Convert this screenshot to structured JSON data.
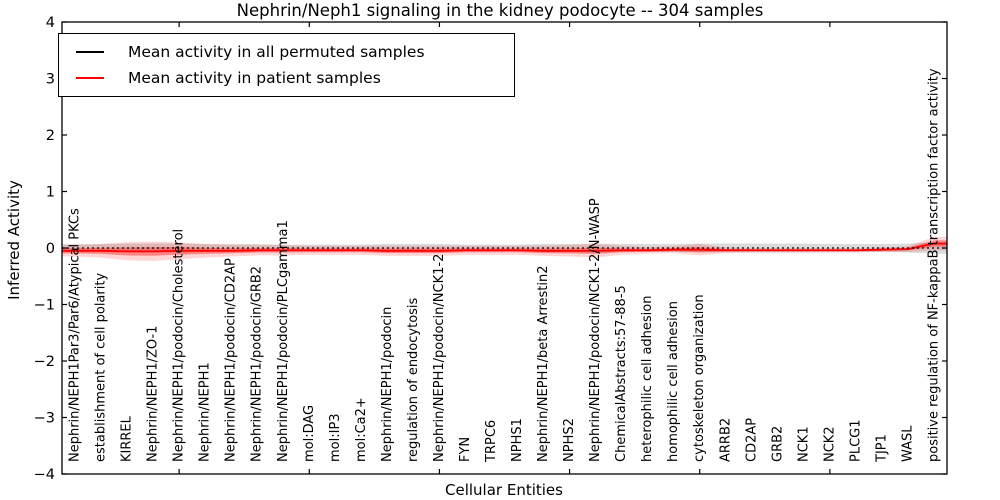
{
  "chart_data": {
    "type": "line",
    "title": "Nephrin/Neph1 signaling in the kidney podocyte -- 304 samples",
    "xlabel": "Cellular Entities",
    "ylabel": "Inferred Activity",
    "ylim": [
      -4,
      4
    ],
    "yticks": [
      -4,
      -3,
      -2,
      -1,
      0,
      1,
      2,
      3,
      4
    ],
    "xticks": [
      5,
      10,
      15,
      20,
      25,
      30
    ],
    "grid": false,
    "legend_position": "upper left",
    "n_samples": 304,
    "categories": [
      "Nephrin/NEPH1Par3/Par6/Atypical PKCs",
      "establishment of cell polarity",
      "KIRREL",
      "Nephrin/NEPH1/ZO-1",
      "Nephrin/NEPH1/podocin/Cholesterol",
      "Nephrin/NEPH1",
      "Nephrin/NEPH1/podocin/CD2AP",
      "Nephrin/NEPH1/podocin/GRB2",
      "Nephrin/NEPH1/podocin/PLCgamma1",
      "mol:DAG",
      "mol:IP3",
      "mol:Ca2+",
      "Nephrin/NEPH1/podocin",
      "regulation of endocytosis",
      "Nephrin/NEPH1/podocin/NCK1-2",
      "FYN",
      "TRPC6",
      "NPHS1",
      "Nephrin/NEPH1/beta Arrestin2",
      "NPHS2",
      "Nephrin/NEPH1/podocin/NCK1-2/N-WASP",
      "ChemicalAbstracts:57-88-5",
      "heterophilic cell adhesion",
      "homophilic cell adhesion",
      "cytoskeleton organization",
      "ARRB2",
      "CD2AP",
      "GRB2",
      "NCK1",
      "NCK2",
      "PLCG1",
      "TJP1",
      "WASL",
      "positive regulation of NF-kappaB transcription factor activity"
    ],
    "series": [
      {
        "name": "Mean activity in all permuted samples",
        "color": "#000000",
        "linestyle": "dashed",
        "values": [
          0,
          0,
          0,
          0,
          0,
          0,
          0,
          0,
          0,
          0,
          0,
          0,
          0,
          0,
          0,
          0,
          0,
          0,
          0,
          0,
          0,
          0,
          0,
          0,
          0,
          0,
          0,
          0,
          0,
          0,
          0,
          0,
          0,
          0
        ],
        "band_halfwidth": [
          0.07,
          0.07,
          0.08,
          0.08,
          0.08,
          0.07,
          0.07,
          0.07,
          0.06,
          0.06,
          0.06,
          0.06,
          0.07,
          0.07,
          0.07,
          0.06,
          0.06,
          0.06,
          0.07,
          0.07,
          0.08,
          0.07,
          0.07,
          0.07,
          0.08,
          0.08,
          0.08,
          0.08,
          0.08,
          0.07,
          0.07,
          0.07,
          0.08,
          0.1
        ],
        "band_color": "rgba(110,110,110,0.25)"
      },
      {
        "name": "Mean activity in patient samples",
        "color": "#ff0000",
        "linestyle": "solid",
        "values": [
          -0.05,
          -0.05,
          -0.06,
          -0.06,
          -0.05,
          -0.05,
          -0.05,
          -0.04,
          -0.04,
          -0.04,
          -0.04,
          -0.04,
          -0.05,
          -0.05,
          -0.05,
          -0.04,
          -0.04,
          -0.04,
          -0.05,
          -0.05,
          -0.05,
          -0.04,
          -0.04,
          -0.03,
          -0.03,
          -0.04,
          -0.04,
          -0.04,
          -0.04,
          -0.04,
          -0.04,
          -0.03,
          -0.02,
          0.08
        ],
        "band_halfwidth": [
          0.1,
          0.12,
          0.16,
          0.17,
          0.15,
          0.12,
          0.1,
          0.09,
          0.09,
          0.08,
          0.08,
          0.08,
          0.09,
          0.09,
          0.09,
          0.08,
          0.08,
          0.08,
          0.09,
          0.1,
          0.12,
          0.08,
          0.06,
          0.06,
          0.1,
          0.05,
          0.04,
          0.04,
          0.04,
          0.04,
          0.04,
          0.04,
          0.05,
          0.12
        ],
        "band_color": "rgba(255,0,0,0.16)",
        "band_inner_color": "rgba(255,0,0,0.38)"
      }
    ]
  }
}
